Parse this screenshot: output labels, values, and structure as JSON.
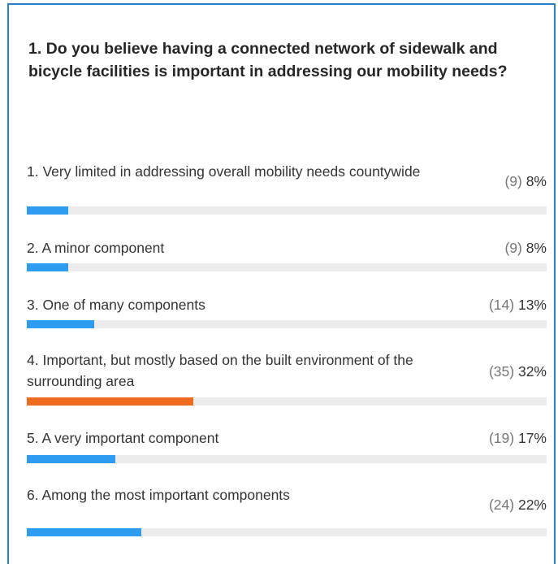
{
  "question": "1. Do you believe having a connected network of sidewalk and bicycle facilities is important in addressing our mobility needs?",
  "colors": {
    "border": "#2a7fc1",
    "bar": "#2e9cf0",
    "bar_highlight": "#ee6a1f",
    "track": "#ececec"
  },
  "options": [
    {
      "label": "1. Very limited in addressing overall mobility needs countywide",
      "count": "(9)",
      "percent": "8%",
      "fraction": 0.08,
      "highlight": false
    },
    {
      "label": "2. A minor component",
      "count": "(9)",
      "percent": "8%",
      "fraction": 0.08,
      "highlight": false
    },
    {
      "label": "3. One of many components",
      "count": "(14)",
      "percent": "13%",
      "fraction": 0.13,
      "highlight": false
    },
    {
      "label": "4. Important, but mostly based on the built environment of the surrounding area",
      "count": "(35)",
      "percent": "32%",
      "fraction": 0.32,
      "highlight": true
    },
    {
      "label": "5. A very important component",
      "count": "(19)",
      "percent": "17%",
      "fraction": 0.17,
      "highlight": false
    },
    {
      "label": "6. Among the most important components",
      "count": "(24)",
      "percent": "22%",
      "fraction": 0.22,
      "highlight": false
    }
  ]
}
